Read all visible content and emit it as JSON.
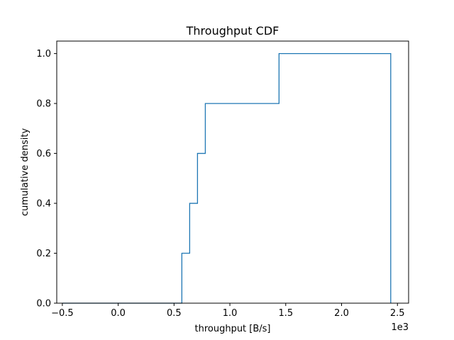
{
  "chart_data": {
    "type": "line",
    "title": "Throughput CDF",
    "xlabel": "throughput [B/s]",
    "ylabel": "cumulative density",
    "x_offset_text": "1e3",
    "xlim": [
      -0.55,
      2.6
    ],
    "ylim": [
      0,
      1.05
    ],
    "x_ticks": [
      -0.5,
      0.0,
      0.5,
      1.0,
      1.5,
      2.0,
      2.5
    ],
    "x_tick_labels": [
      "−0.5",
      "0.0",
      "0.5",
      "1.0",
      "1.5",
      "2.0",
      "2.5"
    ],
    "y_ticks": [
      0.0,
      0.2,
      0.4,
      0.6,
      0.8,
      1.0
    ],
    "y_tick_labels": [
      "0.0",
      "0.2",
      "0.4",
      "0.6",
      "0.8",
      "1.0"
    ],
    "grid": false,
    "series": [
      {
        "color": "#1f77b4",
        "drawstyle": "steps",
        "x": [
          -0.5,
          0.57,
          0.57,
          0.64,
          0.64,
          0.71,
          0.71,
          0.78,
          0.78,
          1.44,
          1.44,
          2.44,
          2.44
        ],
        "y": [
          0.0,
          0.0,
          0.2,
          0.2,
          0.4,
          0.4,
          0.6,
          0.6,
          0.8,
          0.8,
          1.0,
          1.0,
          0.0
        ]
      }
    ]
  }
}
